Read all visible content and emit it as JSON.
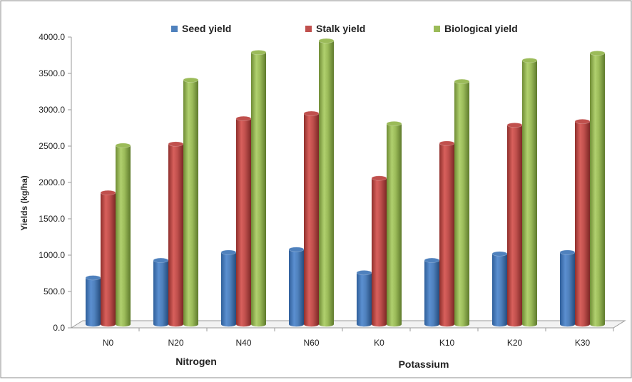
{
  "chart_data": {
    "type": "bar",
    "title": "",
    "ylabel": "Yields (kg/ha)",
    "ylim": [
      0,
      4000
    ],
    "yticks": [
      "0.0",
      "500.0",
      "1000.0",
      "1500.0",
      "2000.0",
      "2500.0",
      "3000.0",
      "3500.0",
      "4000.0"
    ],
    "ytick_values": [
      0,
      500,
      1000,
      1500,
      2000,
      2500,
      3000,
      3500,
      4000
    ],
    "categories": [
      "N0",
      "N20",
      "N40",
      "N60",
      "K0",
      "K10",
      "K20",
      "K30"
    ],
    "groups": [
      {
        "label": "Nitrogen",
        "categories": [
          "N0",
          "N20",
          "N40",
          "N60"
        ]
      },
      {
        "label": "Potassium",
        "categories": [
          "K0",
          "K10",
          "K20",
          "K30"
        ]
      }
    ],
    "legend_position": "top",
    "grid": false,
    "series": [
      {
        "name": "Seed yield",
        "color": "#4f81bd",
        "values": [
          640,
          880,
          990,
          1030,
          710,
          880,
          970,
          990
        ]
      },
      {
        "name": "Stalk yield",
        "color": "#c0504d",
        "values": [
          1810,
          2480,
          2830,
          2900,
          2010,
          2490,
          2740,
          2790
        ]
      },
      {
        "name": "Biological yield",
        "color": "#9bbb59",
        "values": [
          2460,
          3360,
          3740,
          3900,
          2760,
          3340,
          3630,
          3730
        ]
      }
    ]
  }
}
